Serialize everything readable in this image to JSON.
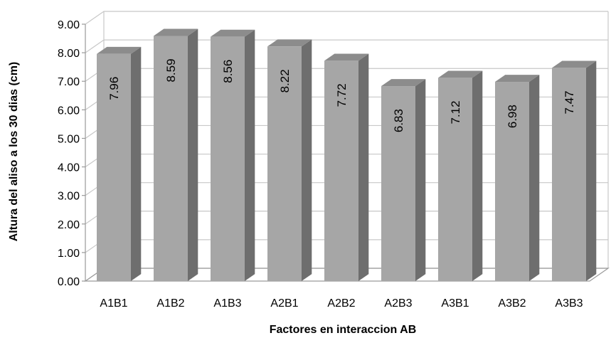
{
  "chart_data": {
    "type": "bar",
    "style": "3d-column",
    "categories": [
      "A1B1",
      "A1B2",
      "A1B3",
      "A2B1",
      "A2B2",
      "A2B3",
      "A3B1",
      "A3B2",
      "A3B3"
    ],
    "values": [
      7.96,
      8.59,
      8.56,
      8.22,
      7.72,
      6.83,
      7.12,
      6.98,
      7.47
    ],
    "data_labels": [
      "7.96",
      "8.59",
      "8.56",
      "8.22",
      "7.72",
      "6.83",
      "7.12",
      "6.98",
      "7.47"
    ],
    "title": "",
    "xlabel": "Factores en interaccion AB",
    "ylabel": "Altura del aliso a los 30 dias (cm)",
    "ylim": [
      0,
      9
    ],
    "yticks": [
      "0.00",
      "1.00",
      "2.00",
      "3.00",
      "4.00",
      "5.00",
      "6.00",
      "7.00",
      "8.00",
      "9.00"
    ],
    "grid": true,
    "legend": "none",
    "colors": {
      "bar_front": "#a6a6a6",
      "bar_side": "#6e6e6e",
      "bar_top": "#8c8c8c",
      "grid": "#c8c8c8",
      "axis": "#9a9a9a"
    }
  }
}
